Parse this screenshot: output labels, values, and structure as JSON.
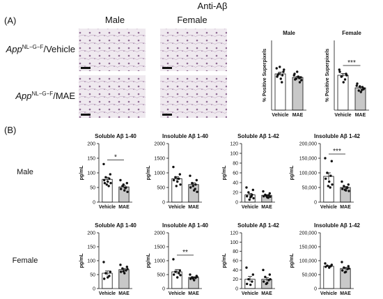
{
  "figure": {
    "title": "Anti-Aβ",
    "panel_a": "(A)",
    "panel_b": "(B)",
    "col_male": "Male",
    "col_female": "Female",
    "row_labels": [
      {
        "gene": "App",
        "superscript": "NL−G−F",
        "suffix": "/Vehicle"
      },
      {
        "gene": "App",
        "superscript": "NL−G−F",
        "suffix": "/MAE"
      }
    ],
    "b_row_male": "Male",
    "b_row_female": "Female"
  },
  "chart_data": [
    {
      "type": "bar",
      "title": "Male",
      "ylabel": "% Positive Superpixels",
      "categories": [
        "Vehicle",
        "MAE"
      ],
      "colors": [
        "#ffffff",
        "#c8c8c8"
      ],
      "values": [
        52,
        47
      ],
      "errors": [
        2.5,
        1.5
      ],
      "ylim": [
        0,
        100
      ],
      "points": [
        [
          60,
          55,
          52,
          50,
          48,
          45,
          58,
          62,
          40,
          50
        ],
        [
          50,
          47,
          45,
          40,
          52,
          48,
          43,
          55,
          46,
          44
        ]
      ]
    },
    {
      "type": "bar",
      "title": "Female",
      "ylabel": "% Positive Superpixels",
      "categories": [
        "Vehicle",
        "MAE"
      ],
      "colors": [
        "#ffffff",
        "#c8c8c8"
      ],
      "values": [
        50,
        32
      ],
      "errors": [
        2.5,
        1.3
      ],
      "ylim": [
        0,
        100
      ],
      "annotation": "***",
      "points": [
        [
          58,
          52,
          48,
          44,
          55,
          40,
          50
        ],
        [
          35,
          30,
          28,
          33,
          38,
          26,
          31,
          34,
          29
        ]
      ]
    },
    {
      "type": "bar",
      "title": "Soluble Aβ 1-40",
      "ylabel": "pg/mL",
      "categories": [
        "Vehicle",
        "MAE"
      ],
      "colors": [
        "#ffffff",
        "#c8c8c8"
      ],
      "values": [
        78,
        52
      ],
      "errors": [
        7,
        5
      ],
      "ylim": [
        0,
        200
      ],
      "yticks": [
        0,
        50,
        100,
        150,
        200
      ],
      "annotation": "*",
      "points": [
        [
          130,
          95,
          85,
          80,
          75,
          70,
          65,
          60,
          55,
          65
        ],
        [
          75,
          65,
          55,
          50,
          45,
          40,
          35,
          60,
          48
        ]
      ]
    },
    {
      "type": "bar",
      "title": "Insoluble Aβ 1-40",
      "ylabel": "pg/mL",
      "categories": [
        "Vehicle",
        "MAE"
      ],
      "colors": [
        "#ffffff",
        "#c8c8c8"
      ],
      "values": [
        800,
        600
      ],
      "errors": [
        65,
        60
      ],
      "ylim": [
        0,
        2000
      ],
      "yticks": [
        0,
        500,
        1000,
        1500,
        2000
      ],
      "points": [
        [
          1200,
          950,
          850,
          800,
          750,
          700,
          600,
          550,
          800
        ],
        [
          900,
          750,
          650,
          600,
          500,
          400,
          350,
          550,
          450
        ]
      ]
    },
    {
      "type": "bar",
      "title": "Soluble Aβ 1-42",
      "ylabel": "pg/mL",
      "categories": [
        "Vehicle",
        "MAE"
      ],
      "colors": [
        "#ffffff",
        "#c8c8c8"
      ],
      "values": [
        15,
        14
      ],
      "errors": [
        2.7,
        1.3
      ],
      "ylim": [
        0,
        120
      ],
      "yticks": [
        0,
        20,
        40,
        60,
        80,
        100,
        120
      ],
      "points": [
        [
          30,
          25,
          20,
          15,
          12,
          10,
          8,
          5,
          12
        ],
        [
          22,
          18,
          15,
          14,
          12,
          10,
          11,
          13,
          9
        ]
      ]
    },
    {
      "type": "bar",
      "title": "Insoluble Aβ 1-42",
      "ylabel": "pg/mL",
      "categories": [
        "Vehicle",
        "MAE"
      ],
      "colors": [
        "#ffffff",
        "#c8c8c8"
      ],
      "values": [
        88000,
        50000
      ],
      "errors": [
        12000,
        3500
      ],
      "ylim": [
        0,
        200000
      ],
      "yticks": [
        0,
        {
          "value": 50000,
          "label": "50,000"
        },
        {
          "value": 100000,
          "label": "100,000"
        },
        {
          "value": 150000,
          "label": "150,000"
        },
        {
          "value": 200000,
          "label": "200,000"
        }
      ],
      "annotation": "***",
      "points": [
        [
          150000,
          140000,
          100000,
          90000,
          80000,
          70000,
          60000,
          55000,
          50000
        ],
        [
          70000,
          60000,
          55000,
          50000,
          45000,
          40000,
          38000,
          42000,
          48000
        ]
      ]
    },
    {
      "type": "bar",
      "title": "Soluble Aβ 1-40",
      "ylabel": "pg/mL",
      "categories": [
        "Vehicle",
        "MAE"
      ],
      "colors": [
        "#ffffff",
        "#c8c8c8"
      ],
      "values": [
        55,
        68
      ],
      "errors": [
        8,
        4
      ],
      "ylim": [
        0,
        200
      ],
      "yticks": [
        0,
        50,
        100,
        150,
        200
      ],
      "points": [
        [
          95,
          60,
          55,
          45,
          35,
          40
        ],
        [
          85,
          78,
          72,
          65,
          60,
          55,
          70,
          62
        ]
      ]
    },
    {
      "type": "bar",
      "title": "Insoluble Aβ 1-40",
      "ylabel": "pg/mL",
      "categories": [
        "Vehicle",
        "MAE"
      ],
      "colors": [
        "#ffffff",
        "#c8c8c8"
      ],
      "values": [
        600,
        400
      ],
      "errors": [
        80,
        22
      ],
      "ylim": [
        0,
        2000
      ],
      "yticks": [
        0,
        500,
        1000,
        1500,
        2000
      ],
      "annotation": "**",
      "points": [
        [
          1050,
          650,
          600,
          550,
          500,
          400,
          480
        ],
        [
          500,
          450,
          400,
          380,
          350,
          300,
          420,
          360
        ]
      ]
    },
    {
      "type": "bar",
      "title": "Soluble Aβ 1-42",
      "ylabel": "pg/mL",
      "categories": [
        "Vehicle",
        "MAE"
      ],
      "colors": [
        "#ffffff",
        "#c8c8c8"
      ],
      "values": [
        20,
        20
      ],
      "errors": [
        6,
        3.5
      ],
      "ylim": [
        0,
        120
      ],
      "yticks": [
        0,
        20,
        40,
        60,
        80,
        100,
        120
      ],
      "points": [
        [
          45,
          30,
          20,
          15,
          10,
          8
        ],
        [
          40,
          30,
          25,
          18,
          15,
          12,
          20,
          10
        ]
      ]
    },
    {
      "type": "bar",
      "title": "Insoluble Aβ 1-42",
      "ylabel": "pg/mL",
      "categories": [
        "Vehicle",
        "MAE"
      ],
      "colors": [
        "#ffffff",
        "#c8c8c8"
      ],
      "values": [
        80000,
        72000
      ],
      "errors": [
        2300,
        4300
      ],
      "ylim": [
        0,
        200000
      ],
      "yticks": [
        0,
        {
          "value": 50000,
          "label": "50,000"
        },
        {
          "value": 100000,
          "label": "100,000"
        },
        {
          "value": 150000,
          "label": "150,000"
        },
        {
          "value": 200000,
          "label": "200,000"
        }
      ],
      "points": [
        [
          90000,
          85000,
          82000,
          80000,
          78000,
          75000
        ],
        [
          95000,
          80000,
          75000,
          70000,
          65000,
          60000,
          72000,
          58000
        ]
      ]
    }
  ]
}
